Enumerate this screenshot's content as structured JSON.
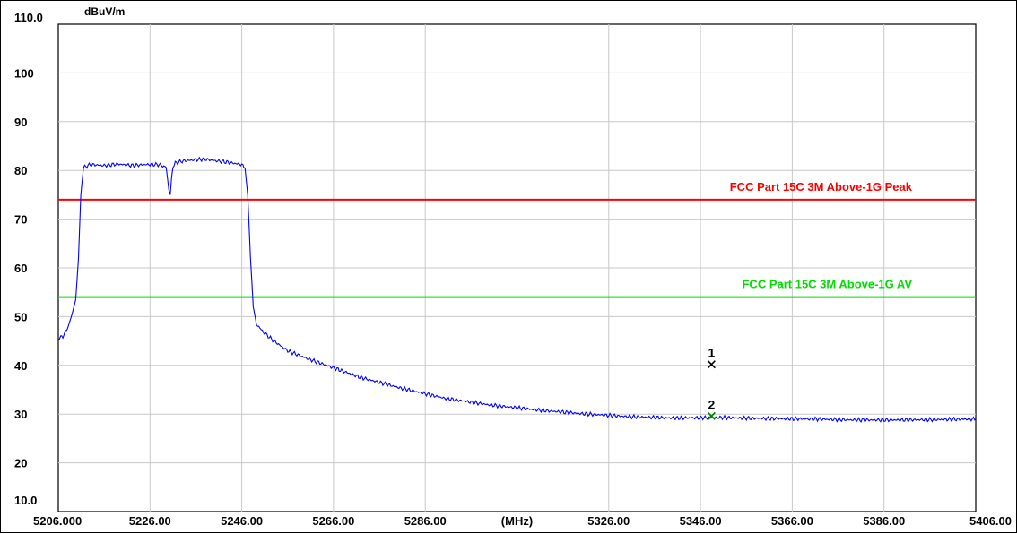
{
  "chart_data": {
    "type": "line",
    "title": "",
    "xlabel": "(MHz)",
    "ylabel": "dBuV/m",
    "xlim": [
      5206.0,
      5406.0
    ],
    "ylim": [
      10.0,
      110.0
    ],
    "grid": true,
    "y_ticks": [
      {
        "value": 110,
        "label": "110.0"
      },
      {
        "value": 100,
        "label": "100"
      },
      {
        "value": 90,
        "label": "90"
      },
      {
        "value": 80,
        "label": "80"
      },
      {
        "value": 70,
        "label": "70"
      },
      {
        "value": 60,
        "label": "60"
      },
      {
        "value": 50,
        "label": "50"
      },
      {
        "value": 40,
        "label": "40"
      },
      {
        "value": 30,
        "label": "30"
      },
      {
        "value": 20,
        "label": "20"
      },
      {
        "value": 10,
        "label": "10.0"
      }
    ],
    "x_ticks": [
      {
        "value": 5206,
        "label": "5206.000"
      },
      {
        "value": 5226,
        "label": "5226.00"
      },
      {
        "value": 5246,
        "label": "5246.00"
      },
      {
        "value": 5266,
        "label": "5266.00"
      },
      {
        "value": 5286,
        "label": "5286.00"
      },
      {
        "value": 5306,
        "label": "(MHz)"
      },
      {
        "value": 5326,
        "label": "5326.00"
      },
      {
        "value": 5346,
        "label": "5346.00"
      },
      {
        "value": 5366,
        "label": "5366.00"
      },
      {
        "value": 5386,
        "label": "5386.00"
      },
      {
        "value": 5406,
        "label": "5406.00"
      }
    ],
    "limit_lines": [
      {
        "name": "FCC Part 15C 3M Above-1G Peak",
        "value": 74,
        "color": "#ff0000"
      },
      {
        "name": "FCC Part 15C 3M Above-1G AV",
        "value": 54,
        "color": "#00dd00"
      }
    ],
    "series": [
      {
        "color": "#0000ff",
        "x": [
          5206.0,
          5207.0,
          5208.0,
          5209.0,
          5209.8,
          5210.4,
          5210.9,
          5211.5,
          5213.0,
          5216.0,
          5219.0,
          5222.0,
          5225.0,
          5228.0,
          5229.5,
          5229.8,
          5230.1,
          5230.4,
          5230.7,
          5231.0,
          5231.5,
          5233.0,
          5236.0,
          5238.0,
          5240.0,
          5242.0,
          5244.0,
          5246.0,
          5246.7,
          5247.3,
          5247.9,
          5248.5,
          5249.2,
          5250.5,
          5253.0,
          5256.0,
          5260.0,
          5266.0,
          5272.0,
          5280.0,
          5290.0,
          5300.0,
          5310.0,
          5320.0,
          5330.0,
          5340.0,
          5350.0,
          5360.0,
          5370.0,
          5380.0,
          5390.0,
          5400.0,
          5406.0
        ],
        "y": [
          45.5,
          46.0,
          47.5,
          50.5,
          53.5,
          62.0,
          75.0,
          80.6,
          81.2,
          81.0,
          81.3,
          81.0,
          81.2,
          81.2,
          80.6,
          78.5,
          76.0,
          75.0,
          78.5,
          80.8,
          81.5,
          81.9,
          82.2,
          82.3,
          82.0,
          81.8,
          81.5,
          81.2,
          80.5,
          75.0,
          62.0,
          52.0,
          48.5,
          47.0,
          45.0,
          43.0,
          41.5,
          39.5,
          37.5,
          35.5,
          33.3,
          31.9,
          30.9,
          30.1,
          29.5,
          29.2,
          29.3,
          29.1,
          29.0,
          28.8,
          28.8,
          28.9,
          29.0
        ]
      }
    ],
    "markers": [
      {
        "label": "1",
        "x": 5348.4,
        "y": 40.2,
        "symbol": "x",
        "color": "#000000"
      },
      {
        "label": "2",
        "x": 5348.4,
        "y": 29.6,
        "symbol": "x",
        "color": "#008000"
      }
    ]
  }
}
